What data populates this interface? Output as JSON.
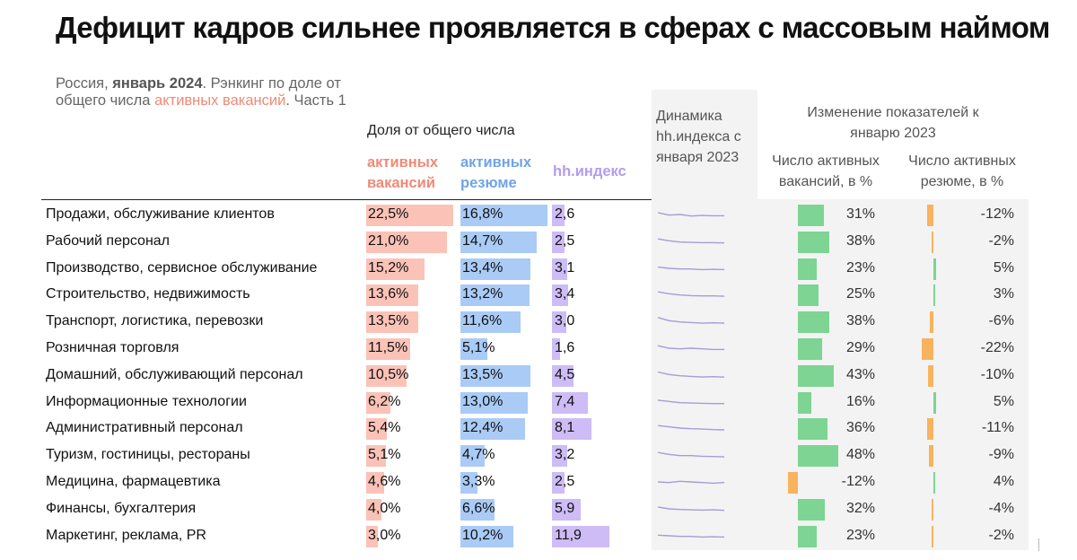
{
  "title": "Дефицит кадров сильнее проявляется в сферах с массовым наймом",
  "subtitle": {
    "prefix": "Россия, ",
    "bold": "январь 2024",
    "mid": ". Рэнкинг по доле от общего числа ",
    "accent": "активных вакансий",
    "suffix": ". Часть 1"
  },
  "headers": {
    "share": "Доля от общего числа",
    "vacancies": "активных вакансий",
    "resumes": "активных резюме",
    "hh_index": "hh.индекс",
    "dynamics": "Динамика hh.индекса с января 2023",
    "change": "Изменение показателей к январю 2023",
    "change_vacancies": "Число активных вакансий, в %",
    "change_resumes": "Число активных резюме, в %"
  },
  "colors": {
    "vacancies": "#fbc2b7",
    "resumes": "#a9cbf6",
    "hh_index": "#cdbcf6",
    "positive_change": "#7dd493",
    "negative_change": "#f8b35e",
    "accent_text": "#f08a77"
  },
  "chart_data": {
    "type": "table",
    "categories": [
      "Продажи, обслуживание клиентов",
      "Рабочий персонал",
      "Производство, сервисное обслуживание",
      "Строительство, недвижимость",
      "Транспорт, логистика, перевозки",
      "Розничная торговля",
      "Домашний, обслуживающий персонал",
      "Информационные технологии",
      "Административный персонал",
      "Туризм, гостиницы, рестораны",
      "Медицина, фармацевтика",
      "Финансы, бухгалтерия",
      "Маркетинг, реклама, PR"
    ],
    "series": [
      {
        "name": "активных вакансий",
        "unit": "%",
        "values": [
          22.5,
          21.0,
          15.2,
          13.6,
          13.5,
          11.5,
          10.5,
          6.2,
          5.4,
          5.1,
          4.6,
          4.0,
          3.0
        ],
        "labels": [
          "22,5%",
          "21,0%",
          "15,2%",
          "13,6%",
          "13,5%",
          "11,5%",
          "10,5%",
          "6,2%",
          "5,4%",
          "5,1%",
          "4,6%",
          "4,0%",
          "3,0%"
        ]
      },
      {
        "name": "активных резюме",
        "unit": "%",
        "values": [
          16.8,
          14.7,
          13.4,
          13.2,
          11.6,
          5.1,
          13.5,
          13.0,
          12.4,
          4.7,
          3.3,
          6.6,
          10.2
        ],
        "labels": [
          "16,8%",
          "14,7%",
          "13,4%",
          "13,2%",
          "11,6%",
          "5,1%",
          "13,5%",
          "13,0%",
          "12,4%",
          "4,7%",
          "3,3%",
          "6,6%",
          "10,2%"
        ]
      },
      {
        "name": "hh.индекс",
        "values": [
          2.6,
          2.5,
          3.1,
          3.4,
          3.0,
          1.6,
          4.5,
          7.4,
          8.1,
          3.2,
          2.5,
          5.9,
          11.9
        ],
        "labels": [
          "2,6",
          "2,5",
          "3,1",
          "3,4",
          "3,0",
          "1,6",
          "4,5",
          "7,4",
          "8,1",
          "3,2",
          "2,5",
          "5,9",
          "11,9"
        ]
      },
      {
        "name": "Число активных вакансий, в %",
        "values": [
          31,
          38,
          23,
          25,
          38,
          29,
          43,
          16,
          36,
          48,
          -12,
          32,
          23
        ],
        "labels": [
          "31%",
          "38%",
          "23%",
          "25%",
          "38%",
          "29%",
          "43%",
          "16%",
          "36%",
          "48%",
          "-12%",
          "32%",
          "23%"
        ]
      },
      {
        "name": "Число активных резюме, в %",
        "values": [
          -12,
          -2,
          5,
          3,
          -6,
          -22,
          -10,
          5,
          -11,
          -9,
          4,
          -4,
          -2
        ],
        "labels": [
          "-12%",
          "-2%",
          "5%",
          "3%",
          "-6%",
          "-22%",
          "-10%",
          "5%",
          "-11%",
          "-9%",
          "4%",
          "-4%",
          "-2%"
        ]
      }
    ],
    "sparkline_trend": [
      [
        0.35,
        0.55,
        0.5,
        0.62,
        0.58,
        0.6,
        0.6
      ],
      [
        0.3,
        0.45,
        0.55,
        0.58,
        0.6,
        0.6,
        0.62
      ],
      [
        0.4,
        0.5,
        0.55,
        0.55,
        0.6,
        0.58,
        0.6
      ],
      [
        0.3,
        0.45,
        0.55,
        0.6,
        0.62,
        0.62,
        0.65
      ],
      [
        0.2,
        0.45,
        0.55,
        0.6,
        0.65,
        0.62,
        0.65
      ],
      [
        0.3,
        0.5,
        0.55,
        0.5,
        0.55,
        0.6,
        0.6
      ],
      [
        0.25,
        0.45,
        0.55,
        0.6,
        0.65,
        0.62,
        0.66
      ],
      [
        0.35,
        0.45,
        0.55,
        0.58,
        0.6,
        0.62,
        0.62
      ],
      [
        0.3,
        0.4,
        0.5,
        0.55,
        0.58,
        0.62,
        0.64
      ],
      [
        0.3,
        0.45,
        0.55,
        0.55,
        0.6,
        0.62,
        0.65
      ],
      [
        0.5,
        0.55,
        0.45,
        0.5,
        0.55,
        0.6,
        0.55
      ],
      [
        0.35,
        0.5,
        0.55,
        0.58,
        0.6,
        0.58,
        0.62
      ],
      [
        0.45,
        0.5,
        0.55,
        0.55,
        0.6,
        0.58,
        0.6
      ]
    ]
  }
}
